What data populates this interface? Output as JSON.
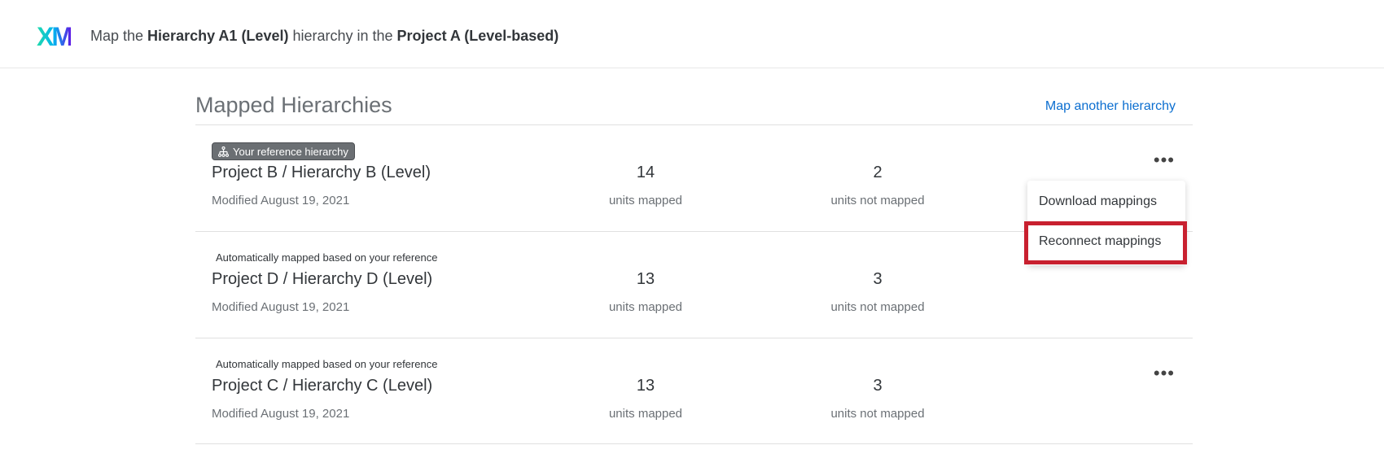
{
  "header": {
    "logo": "XM",
    "title_parts": [
      "Map the ",
      "Hierarchy A1 (Level)",
      " hierarchy in the ",
      "Project A (Level-based)"
    ]
  },
  "main": {
    "title": "Mapped Hierarchies",
    "map_another": "Map another hierarchy",
    "rows": [
      {
        "tag": "Your reference hierarchy",
        "name": "Project B / Hierarchy B (Level)",
        "modified": "Modified August 19, 2021",
        "mapped": "14",
        "mapped_label": "units mapped",
        "not_mapped": "2",
        "not_mapped_label": "units not mapped"
      },
      {
        "tag": "Automatically mapped based on your reference",
        "name": "Project D / Hierarchy D (Level)",
        "modified": "Modified August 19, 2021",
        "mapped": "13",
        "mapped_label": "units mapped",
        "not_mapped": "3",
        "not_mapped_label": "units not mapped"
      },
      {
        "tag": "Automatically mapped based on your reference",
        "name": "Project C / Hierarchy C (Level)",
        "modified": "Modified August 19, 2021",
        "mapped": "13",
        "mapped_label": "units mapped",
        "not_mapped": "3",
        "not_mapped_label": "units not mapped"
      }
    ]
  },
  "menu": {
    "items": [
      "Download mappings",
      "Reconnect mappings"
    ],
    "highlight_color": "#c8202f"
  },
  "more_icon": "•••"
}
